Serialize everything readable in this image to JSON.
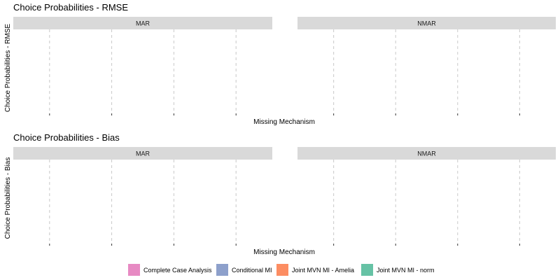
{
  "chart_data": [
    {
      "type": "bar",
      "title": "Choice Probabilities - RMSE",
      "xlabel": "Missing Mechanism",
      "ylabel": "Choice Probabilities - RMSE",
      "facets": [
        "MAR",
        "NMAR"
      ],
      "categories": [],
      "series": [],
      "grid": "vertical-dashed",
      "legend_position": "bottom"
    },
    {
      "type": "bar",
      "title": "Choice Probabilities - Bias",
      "xlabel": "Missing Mechanism",
      "ylabel": "Choice Probabilities - Bias",
      "facets": [
        "MAR",
        "NMAR"
      ],
      "categories": [],
      "series": [],
      "grid": "vertical-dashed",
      "legend_position": "bottom"
    }
  ],
  "legend": {
    "items": [
      {
        "label": "Complete Case Analysis",
        "color": "#e78ac3"
      },
      {
        "label": "Conditional MI",
        "color": "#8da0cb"
      },
      {
        "label": "Joint MVN MI - Amelia",
        "color": "#fc8d62"
      },
      {
        "label": "Joint MVN MI - norm",
        "color": "#66c2a5"
      }
    ]
  },
  "style": {
    "strip_fill": "#d9d9d9",
    "grid_color": "#c8c8c8",
    "tick_color": "#333333"
  }
}
